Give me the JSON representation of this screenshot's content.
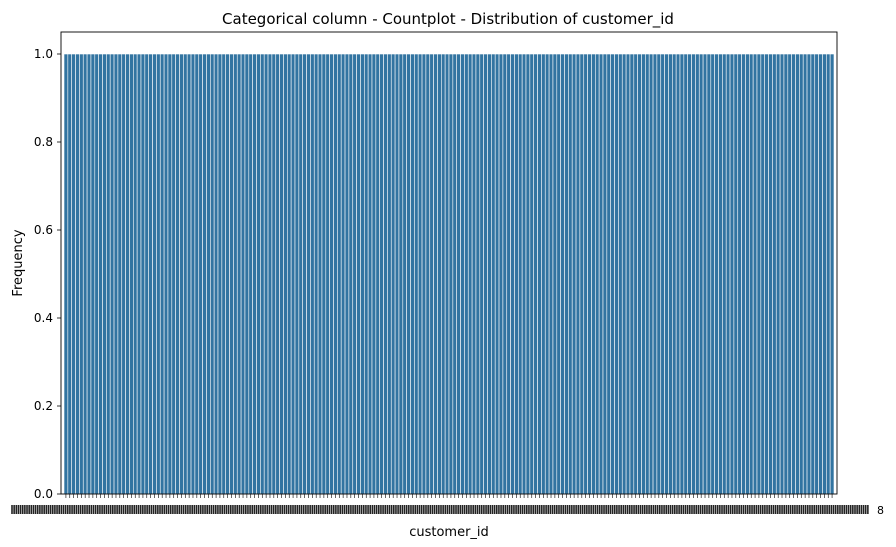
{
  "chart_data": {
    "type": "bar",
    "title": "Categorical column - Countplot - Distribution of customer_id",
    "xlabel": "customer_id",
    "ylabel": "Frequency",
    "bar_count": 200,
    "value_per_bar": 1,
    "ylim": [
      0,
      1.05
    ],
    "yticks": [
      "0.0",
      "0.2",
      "0.4",
      "0.6",
      "0.8",
      "1.0"
    ],
    "xtick_label_tail": "8",
    "grid": false,
    "legend": "none",
    "colors": {
      "bar": "#3274a1",
      "bar_edge": "#ffffff",
      "axis": "#000000",
      "background": "#ffffff"
    }
  }
}
